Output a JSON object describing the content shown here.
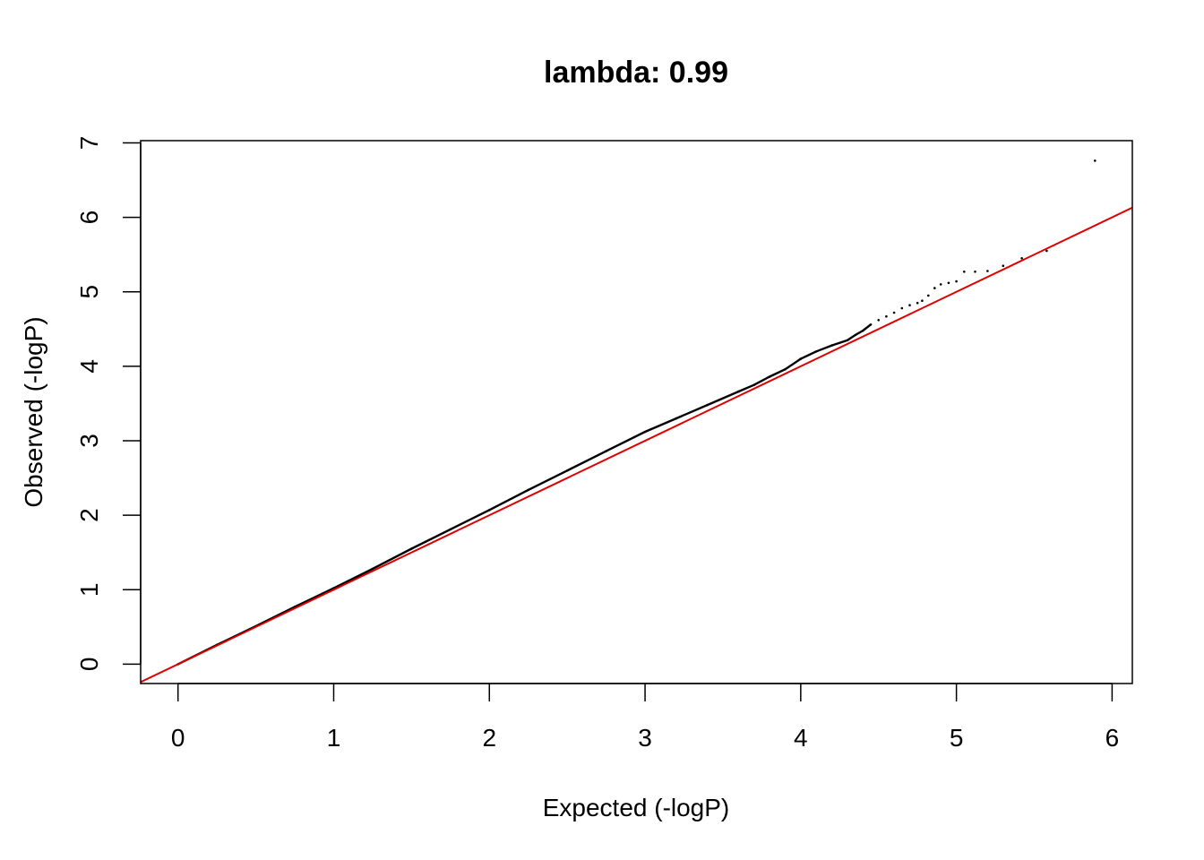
{
  "chart_data": {
    "type": "scatter",
    "title": "lambda: 0.99",
    "xlabel": "Expected (-logP)",
    "ylabel": "Observed (-logP)",
    "xlim": [
      -0.24,
      6.13
    ],
    "ylim": [
      -0.26,
      7.03
    ],
    "x_ticks": [
      0,
      1,
      2,
      3,
      4,
      5,
      6
    ],
    "y_ticks": [
      0,
      1,
      2,
      3,
      4,
      5,
      6,
      7
    ],
    "grid": false,
    "legend": "none",
    "point_color": "#000000",
    "reference_line": {
      "slope": 1,
      "intercept": 0,
      "color": "#dd0000"
    },
    "points": {
      "x": [
        0.0,
        0.25,
        0.5,
        0.75,
        1.0,
        1.25,
        1.5,
        1.75,
        2.0,
        2.25,
        2.5,
        2.75,
        3.0,
        3.2,
        3.4,
        3.6,
        3.7,
        3.8,
        3.9,
        4.0,
        4.1,
        4.2,
        4.3,
        4.35,
        4.4,
        4.45,
        4.5,
        4.55,
        4.6,
        4.65,
        4.7,
        4.75,
        4.78,
        4.82,
        4.86,
        4.9,
        4.95,
        5.0,
        5.05,
        5.12,
        5.2,
        5.3,
        5.42,
        5.58,
        5.89
      ],
      "y": [
        0.0,
        0.26,
        0.51,
        0.77,
        1.02,
        1.28,
        1.55,
        1.81,
        2.07,
        2.34,
        2.6,
        2.86,
        3.12,
        3.3,
        3.48,
        3.66,
        3.75,
        3.86,
        3.96,
        4.1,
        4.2,
        4.28,
        4.35,
        4.42,
        4.48,
        4.56,
        4.62,
        4.67,
        4.72,
        4.78,
        4.82,
        4.85,
        4.88,
        4.95,
        5.05,
        5.1,
        5.12,
        5.14,
        5.27,
        5.27,
        5.28,
        5.35,
        5.45,
        5.55,
        6.76
      ]
    }
  }
}
